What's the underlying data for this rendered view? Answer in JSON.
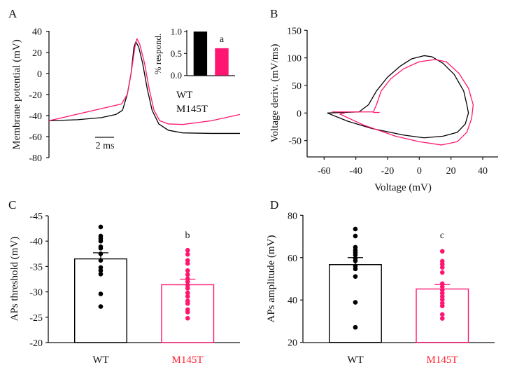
{
  "colors": {
    "wt": "#000000",
    "m145t": "#ff1670",
    "m145t_label": "#ff2030"
  },
  "chart_data": [
    {
      "panel": "A",
      "type": "line",
      "ylabel": "Membrane potential (mV)",
      "xlabel": "",
      "ylim": [
        -80,
        40
      ],
      "yticks": [
        40,
        20,
        0,
        -20,
        -40,
        -60,
        -80
      ],
      "scale_bar": "2 ms",
      "scale_bar_ms": 2,
      "xlim_ms": [
        0,
        20
      ],
      "legend": [
        "WT",
        "M145T"
      ],
      "series": [
        {
          "name": "WT",
          "color_key": "wt",
          "t": [
            0,
            3,
            5.5,
            7,
            7.7,
            8.2,
            8.6,
            8.9,
            9.1,
            9.4,
            9.8,
            10.3,
            10.8,
            11.5,
            12.5,
            14,
            17,
            20
          ],
          "v": [
            -45,
            -44,
            -42,
            -39,
            -35,
            -20,
            0,
            25,
            30,
            25,
            10,
            -15,
            -35,
            -48,
            -54,
            -56.5,
            -57,
            -57
          ]
        },
        {
          "name": "M145T",
          "color_key": "m145t",
          "t": [
            0,
            7.6,
            8.2,
            8.6,
            9.0,
            9.2,
            9.5,
            10.0,
            10.5,
            11.0,
            11.6,
            12.5,
            14,
            17,
            20
          ],
          "v": [
            -45,
            -29,
            -20,
            0,
            25,
            33,
            28,
            10,
            -15,
            -35,
            -45,
            -48,
            -48.5,
            -45,
            -39
          ]
        }
      ],
      "inset": {
        "type": "bar",
        "ylabel": "% respond.",
        "ylim": [
          0,
          1
        ],
        "yticks": [
          "1.0",
          "0.5",
          "0.0"
        ],
        "categories": [
          "WT",
          "M145T"
        ],
        "values": [
          1.0,
          0.62
        ],
        "annotation": "a"
      }
    },
    {
      "panel": "B",
      "type": "line",
      "xlabel": "Voltage (mV)",
      "ylabel": "Voltage deriv. (mV/ms)",
      "xlim": [
        -70,
        50
      ],
      "ylim": [
        -80,
        150
      ],
      "xticks": [
        -60,
        -40,
        -20,
        0,
        20,
        40
      ],
      "yticks": [
        150,
        100,
        50,
        0,
        -50
      ],
      "series": [
        {
          "name": "WT",
          "color_key": "wt",
          "x": [
            -58,
            -38,
            -32,
            -27,
            -20,
            -12,
            -5,
            3,
            8,
            15,
            22,
            28,
            30,
            31,
            29,
            24,
            15,
            3,
            -10,
            -30,
            -45,
            -58
          ],
          "y": [
            0,
            2,
            15,
            40,
            65,
            85,
            98,
            104,
            102,
            90,
            70,
            40,
            15,
            0,
            -20,
            -35,
            -42,
            -45,
            -40,
            -28,
            -15,
            0
          ]
        },
        {
          "name": "M145T",
          "color_key": "m145t",
          "x": [
            -55,
            -29,
            -29,
            -27,
            -24,
            -18,
            -10,
            0,
            10,
            17,
            25,
            31,
            34,
            33,
            30,
            24,
            14,
            0,
            -15,
            -35,
            -50,
            -47
          ],
          "y": [
            2,
            2,
            2,
            15,
            40,
            62,
            80,
            93,
            97,
            93,
            72,
            45,
            15,
            -10,
            -35,
            -52,
            -58,
            -52,
            -42,
            -22,
            -2,
            0
          ]
        },
        {
          "name": "M145T-tail",
          "color_key": "m145t",
          "x": [
            -29,
            -25
          ],
          "y": [
            1,
            1
          ]
        }
      ]
    },
    {
      "panel": "C",
      "type": "bar",
      "ylabel": "APs threshold (mV)",
      "ylim": [
        -20,
        -45
      ],
      "yticks": [
        -45,
        -40,
        -35,
        -30,
        -25,
        -20
      ],
      "categories": [
        "WT",
        "M145T"
      ],
      "values": [
        -36.5,
        -31.4
      ],
      "sem_upper": [
        -37.7,
        -32.5
      ],
      "annotation": {
        "M145T": "b"
      },
      "points": {
        "WT": [
          -42.8,
          -41.0,
          -40.5,
          -40.0,
          -38.9,
          -38.6,
          -37.5,
          -36.2,
          -34.8,
          -34.2,
          -33.5,
          -29.6,
          -27.1
        ],
        "M145T": [
          -38.2,
          -37.4,
          -36.2,
          -35.6,
          -34.2,
          -33.4,
          -32.6,
          -32.0,
          -31.3,
          -30.7,
          -29.8,
          -29.1,
          -28.2,
          -27.7,
          -26.5,
          -26.0,
          -24.8
        ]
      }
    },
    {
      "panel": "D",
      "type": "bar",
      "ylabel": "APs amplitude (mV)",
      "ylim": [
        20,
        80
      ],
      "yticks": [
        80,
        60,
        40,
        20
      ],
      "categories": [
        "WT",
        "M145T"
      ],
      "values": [
        56.7,
        45.2
      ],
      "sem_upper": [
        60.0,
        47.3
      ],
      "annotation": {
        "M145T": "c"
      },
      "points": {
        "WT": [
          73.5,
          70.2,
          64.9,
          63.5,
          62.4,
          61.3,
          59.7,
          58.5,
          56.0,
          54.7,
          51.1,
          38.9,
          27.1
        ],
        "M145T": [
          63.0,
          58.3,
          56.9,
          55.4,
          53.0,
          47.7,
          46.3,
          44.7,
          43.2,
          41.7,
          40.2,
          38.5,
          37.2,
          33.2,
          31.3
        ]
      }
    }
  ]
}
